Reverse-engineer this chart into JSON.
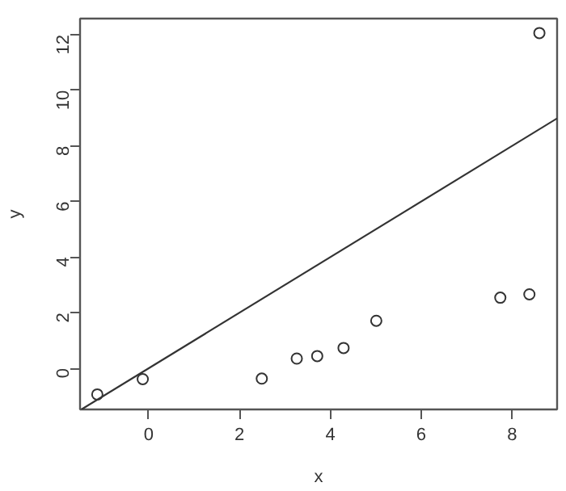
{
  "chart_data": {
    "type": "scatter",
    "xlabel": "x",
    "ylabel": "y",
    "xlim": [
      -1.51,
      8.99
    ],
    "ylim": [
      -1.48,
      12.58
    ],
    "xticks": [
      0,
      2,
      4,
      6,
      8
    ],
    "yticks": [
      0,
      2,
      4,
      6,
      8,
      10,
      12
    ],
    "grid": false,
    "series": [
      {
        "marker": "circle",
        "color": "#333333",
        "x": [
          -1.13,
          -0.13,
          2.49,
          3.26,
          3.71,
          4.29,
          5.01,
          7.74,
          8.38,
          8.6
        ],
        "values": [
          -0.94,
          -0.39,
          -0.37,
          0.35,
          0.44,
          0.73,
          1.71,
          2.54,
          2.66,
          12.06
        ]
      },
      {
        "type": "line",
        "marker": "none",
        "color": "#333333",
        "line_style": "solid",
        "x": [
          -1.48,
          8.99
        ],
        "values": [
          -1.48,
          8.99
        ]
      }
    ]
  }
}
